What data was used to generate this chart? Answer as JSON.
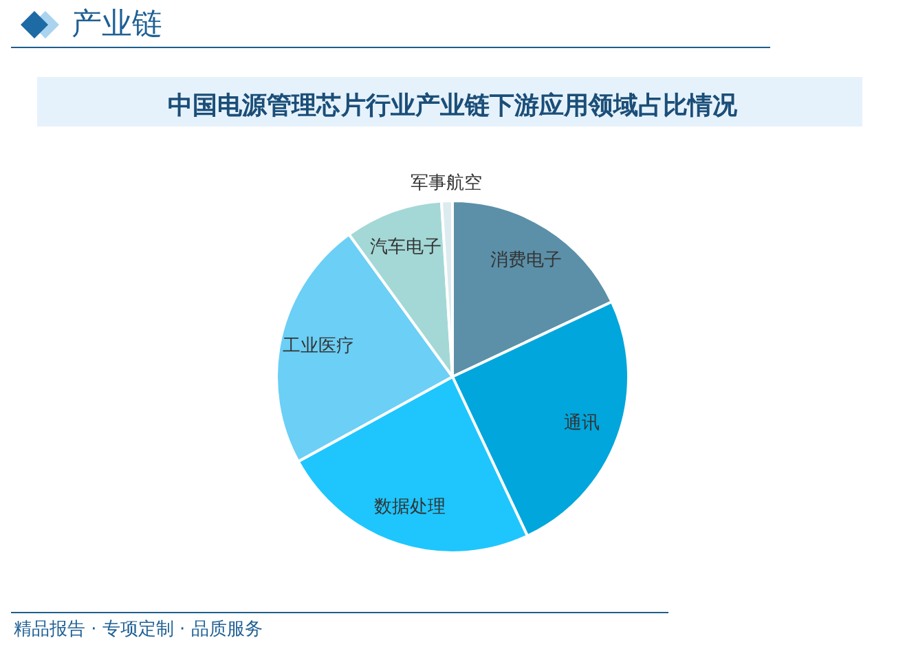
{
  "chart_data": {
    "type": "pie",
    "title": "中国电源管理芯片行业产业链下游应用领域占比情况",
    "categories": [
      "消费电子",
      "通讯",
      "数据处理",
      "工业医疗",
      "汽车电子",
      "军事航空"
    ],
    "values": [
      18,
      25,
      24,
      23,
      9,
      1
    ],
    "colors": [
      "#5b90a8",
      "#00a6dc",
      "#1ec6fd",
      "#6bcff6",
      "#a3d8d6",
      "#dcebef"
    ],
    "annotations": [
      "产业链",
      "精品报告 · 专项定制 · 品质服务"
    ]
  }
}
